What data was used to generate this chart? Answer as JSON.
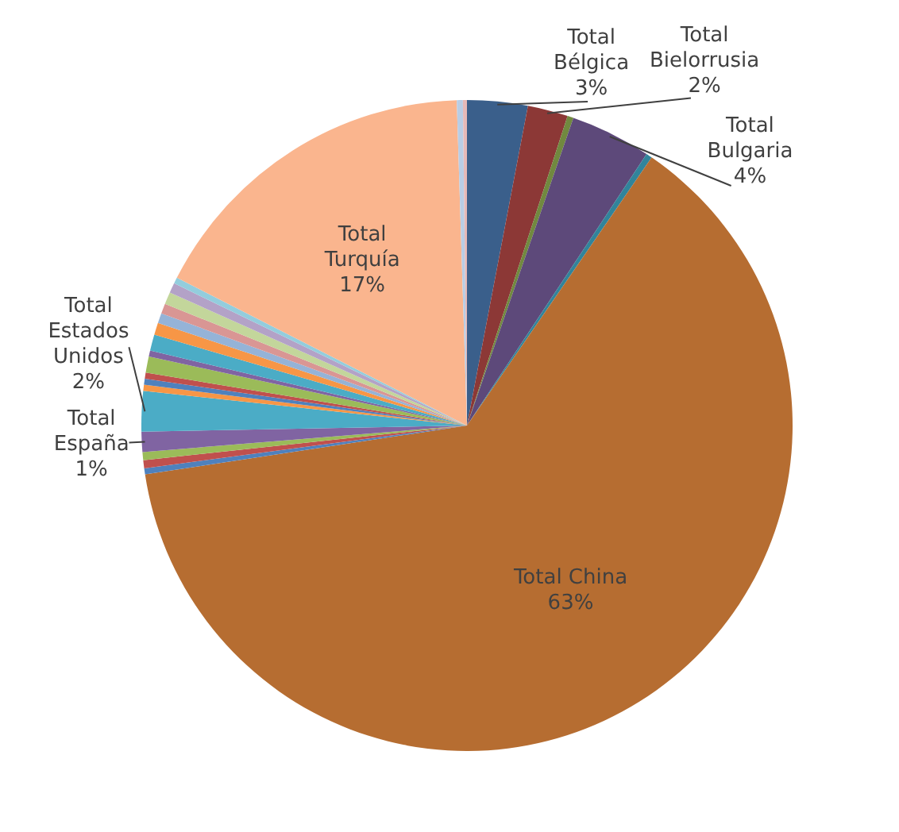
{
  "chart_data": {
    "type": "pie",
    "legend": false,
    "value_labels": [
      "3%",
      "2%",
      null,
      "4%",
      null,
      "63%",
      null,
      null,
      null,
      "1%",
      "2%",
      null,
      null,
      null,
      null,
      null,
      null,
      null,
      null,
      null,
      null,
      null,
      null,
      "17%",
      null,
      null
    ],
    "categories": [
      "Total Bélgica",
      "Total Bielorrusia",
      null,
      "Total Bulgaria",
      null,
      "Total China",
      null,
      null,
      null,
      "Total España",
      "Total Estados Unidos",
      null,
      null,
      null,
      null,
      null,
      null,
      null,
      null,
      null,
      null,
      null,
      null,
      "Total Turquía",
      null,
      null
    ],
    "values": [
      3,
      2,
      0.3,
      4,
      0.3,
      63,
      0.3,
      0.4,
      0.4,
      1,
      2,
      0.3,
      0.3,
      0.3,
      0.8,
      0.3,
      0.8,
      0.6,
      0.5,
      0.5,
      0.6,
      0.5,
      0.3,
      17,
      0.3,
      0.2
    ],
    "colors": [
      "#3a5f8b",
      "#8c3836",
      "#71893f",
      "#5d497a",
      "#31849b",
      "#b66d31",
      "#4f81bd",
      "#c0504d",
      "#9bbb59",
      "#8064a2",
      "#4bacc6",
      "#f79646",
      "#4f81bd",
      "#c0504d",
      "#9bbb59",
      "#8064a2",
      "#4bacc6",
      "#f79646",
      "#95b3d7",
      "#d99694",
      "#c3d69b",
      "#b3a2c7",
      "#93cddd",
      "#fab58e",
      "#b9cde5",
      "#e6b9b8"
    ]
  }
}
